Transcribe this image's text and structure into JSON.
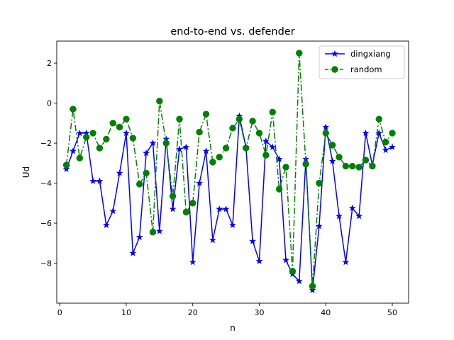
{
  "chart_data": {
    "type": "line",
    "title": "end-to-end vs. defender",
    "xlabel": "n",
    "ylabel": "Ud",
    "xlim": [
      -0.45,
      52.45
    ],
    "ylim": [
      -10.0,
      3.1
    ],
    "xticks": [
      0,
      10,
      20,
      30,
      40,
      50
    ],
    "yticks": [
      -8,
      -6,
      -4,
      -2,
      0,
      2
    ],
    "grid": false,
    "legend_position": "top-right",
    "x": [
      1,
      2,
      3,
      4,
      5,
      6,
      7,
      8,
      9,
      10,
      11,
      12,
      13,
      14,
      15,
      16,
      17,
      18,
      19,
      20,
      21,
      22,
      23,
      24,
      25,
      26,
      27,
      28,
      29,
      30,
      31,
      32,
      33,
      34,
      35,
      36,
      37,
      38,
      39,
      40,
      41,
      42,
      43,
      44,
      45,
      46,
      47,
      48,
      49,
      50
    ],
    "series": [
      {
        "name": "dingxiang",
        "color": "#0000ff",
        "linestyle": "solid",
        "marker": "star",
        "values": [
          -3.3,
          -2.4,
          -1.5,
          -1.5,
          -3.9,
          -3.9,
          -6.1,
          -5.4,
          -3.5,
          -1.5,
          -7.5,
          -6.7,
          -2.5,
          -2.0,
          -6.4,
          -1.8,
          -5.3,
          -2.3,
          -2.2,
          -7.95,
          -4.0,
          -2.4,
          -6.85,
          -5.3,
          -5.3,
          -6.1,
          -0.65,
          -2.2,
          -6.9,
          -7.9,
          -1.9,
          -2.2,
          -2.8,
          -7.85,
          -8.55,
          -8.9,
          -2.8,
          -9.35,
          -6.15,
          -1.2,
          -2.9,
          -5.65,
          -7.95,
          -5.25,
          -5.65,
          -1.5,
          -3.1,
          -1.5,
          -2.35,
          -2.2
        ]
      },
      {
        "name": "random",
        "color": "#008000",
        "linestyle": "dashdot",
        "marker": "circle",
        "values": [
          -3.1,
          -0.3,
          -2.75,
          -1.7,
          -1.5,
          -2.25,
          -1.8,
          -1.0,
          -1.2,
          -0.8,
          -1.75,
          -4.05,
          -3.5,
          -6.45,
          0.1,
          -2.0,
          -4.65,
          -0.8,
          -5.45,
          -5.0,
          -1.45,
          -0.55,
          -2.95,
          -2.7,
          -2.25,
          -1.25,
          -0.8,
          -2.25,
          -0.9,
          -1.5,
          -2.6,
          -0.45,
          -4.3,
          -3.2,
          -8.4,
          2.5,
          -3.05,
          -9.15,
          -4.0,
          -1.5,
          -2.1,
          -2.7,
          -3.15,
          -3.15,
          -3.2,
          -2.85,
          -3.15,
          -0.8,
          -1.95,
          -1.5
        ]
      }
    ]
  }
}
